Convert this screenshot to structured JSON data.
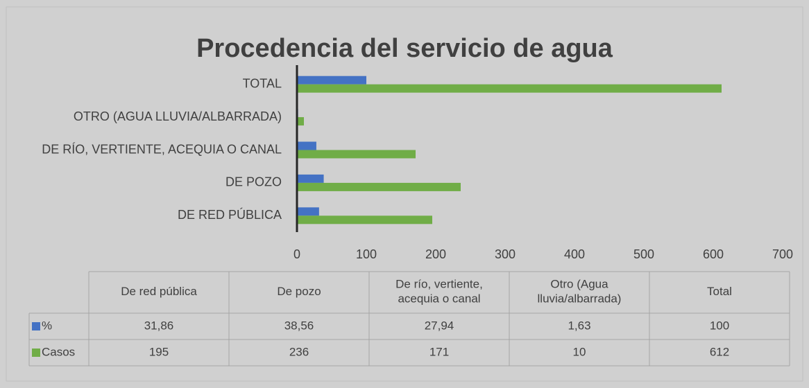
{
  "chart_data": {
    "type": "bar",
    "orientation": "horizontal",
    "title": "Procedencia del servicio de agua",
    "categories": [
      "DE RED PÚBLICA",
      "DE POZO",
      "DE RÍO, VERTIENTE, ACEQUIA O CANAL",
      "OTRO (AGUA LLUVIA/ALBARRADA)",
      "TOTAL"
    ],
    "table_columns": [
      "De red pública",
      "De pozo",
      "De río, vertiente, acequia o canal",
      "Otro (Agua lluvia/albarrada)",
      "Total"
    ],
    "series": [
      {
        "name": "%",
        "color": "#4472c4",
        "values": [
          31.86,
          38.56,
          27.94,
          1.63,
          100
        ],
        "value_labels": [
          "31,86",
          "38,56",
          "27,94",
          "1,63",
          "100"
        ]
      },
      {
        "name": "Casos",
        "color": "#70ad47",
        "values": [
          195,
          236,
          171,
          10,
          612
        ]
      }
    ],
    "xlim": [
      0,
      700
    ],
    "xticks": [
      0,
      100,
      200,
      300,
      400,
      500,
      600,
      700
    ],
    "grid": true
  }
}
